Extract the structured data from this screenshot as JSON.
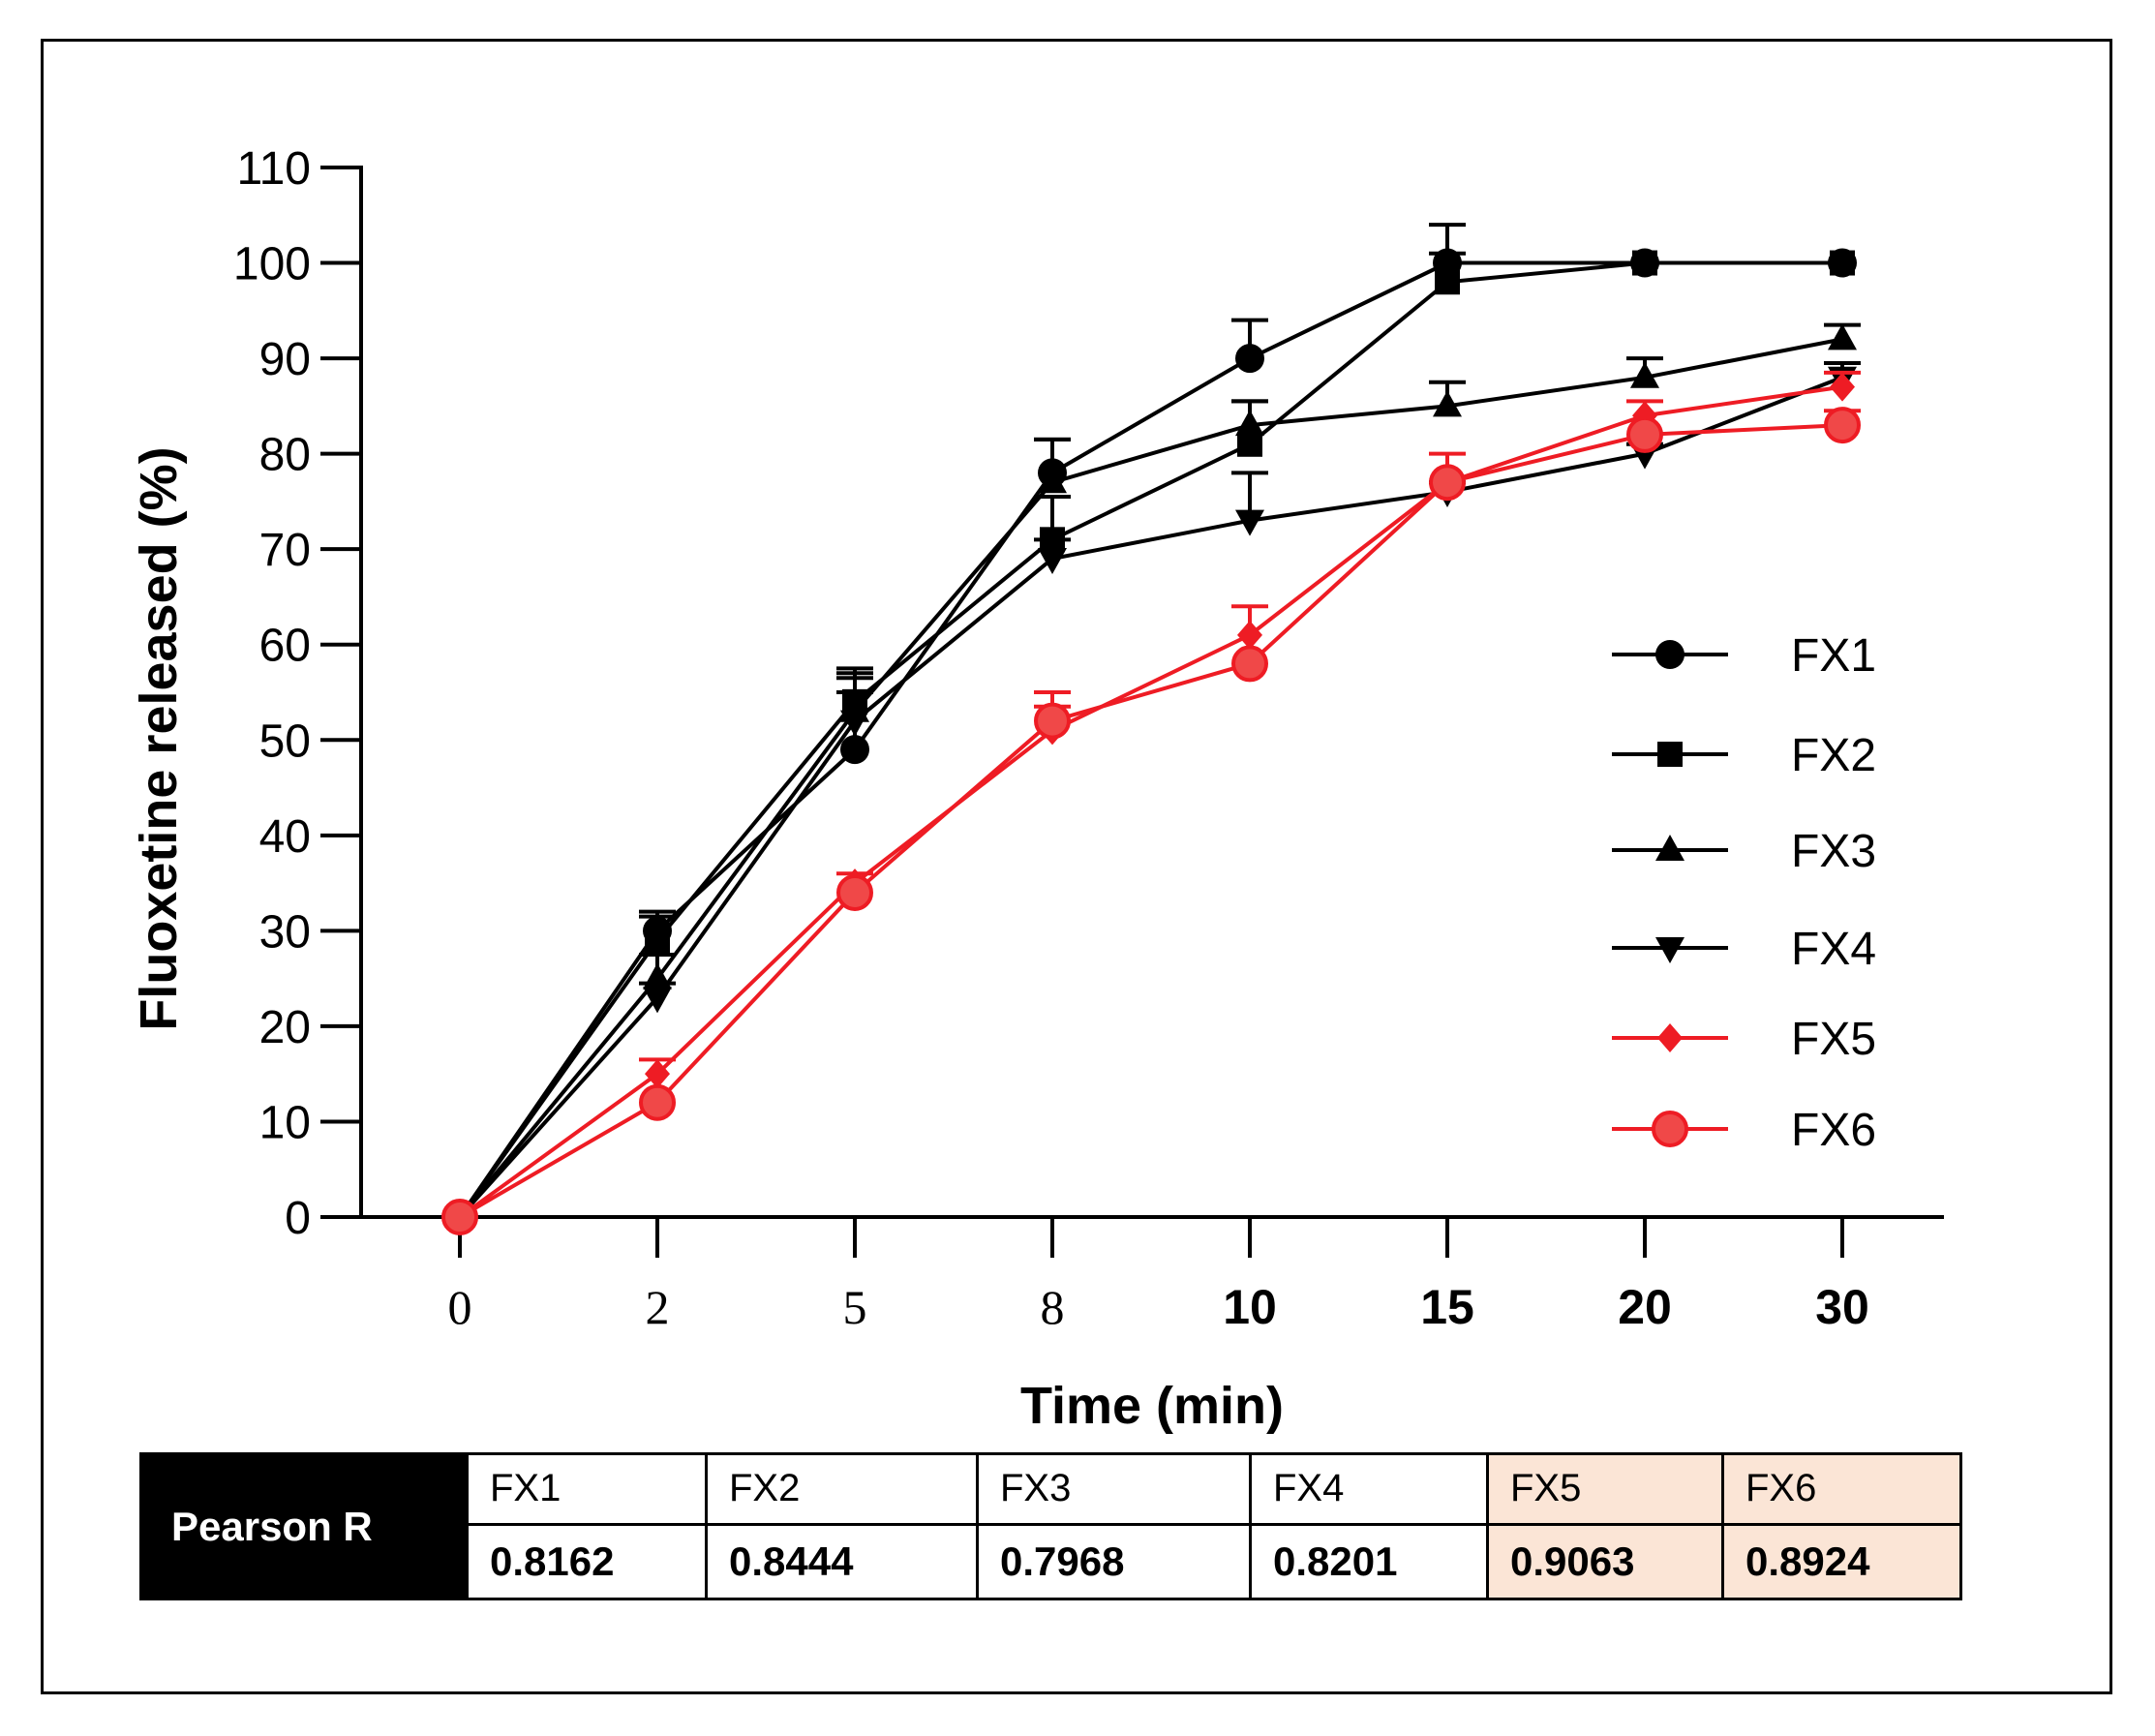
{
  "chart_data": {
    "type": "line",
    "xlabel": "Time (min)",
    "ylabel": "Fluoxetine released (%)",
    "categories": [
      "0",
      "2",
      "5",
      "8",
      "10",
      "15",
      "20",
      "30"
    ],
    "ylim": [
      0,
      110
    ],
    "yticks": [
      0,
      10,
      20,
      30,
      40,
      50,
      60,
      70,
      80,
      90,
      100,
      110
    ],
    "grid": false,
    "legend_position": "right",
    "series": [
      {
        "name": "FX1",
        "marker": "circle",
        "color": "#000000",
        "values": [
          0,
          30,
          49,
          78,
          90,
          100,
          100,
          100
        ],
        "errors": [
          0,
          2,
          8,
          3.5,
          4,
          4,
          0,
          0
        ]
      },
      {
        "name": "FX2",
        "marker": "square",
        "color": "#000000",
        "values": [
          0,
          29,
          54,
          71,
          81,
          98,
          100,
          100
        ],
        "errors": [
          0,
          2.5,
          3.5,
          4.5,
          4.5,
          3,
          0,
          0
        ]
      },
      {
        "name": "FX3",
        "marker": "triangle-up",
        "color": "#000000",
        "values": [
          0,
          25,
          53,
          77,
          83,
          85,
          88,
          92
        ],
        "errors": [
          0,
          2.5,
          3.5,
          4.5,
          2.5,
          2.5,
          2,
          1.5
        ]
      },
      {
        "name": "FX4",
        "marker": "triangle-down",
        "color": "#000000",
        "values": [
          0,
          23,
          52,
          69,
          73,
          76,
          80,
          88
        ],
        "errors": [
          0,
          1.5,
          3,
          2,
          5,
          1,
          1,
          1.5
        ]
      },
      {
        "name": "FX5",
        "marker": "diamond",
        "color": "#ee1c24",
        "values": [
          0,
          15,
          35,
          51,
          61,
          77,
          84,
          87
        ],
        "errors": [
          0,
          1.5,
          1,
          4,
          3,
          3,
          1.5,
          1.5
        ]
      },
      {
        "name": "FX6",
        "marker": "circle-large",
        "color": "#ee1c24",
        "values": [
          0,
          12,
          34,
          52,
          58,
          77,
          82,
          83
        ],
        "errors": [
          0,
          0,
          0,
          1.5,
          0,
          0,
          0,
          1.5
        ]
      }
    ]
  },
  "pearson_table": {
    "header": "Pearson R",
    "columns": [
      "FX1",
      "FX2",
      "FX3",
      "FX4",
      "FX5",
      "FX6"
    ],
    "values": [
      "0.8162",
      "0.8444",
      "0.7968",
      "0.8201",
      "0.9063",
      "0.8924"
    ],
    "highlight_color": "#fbe5d6"
  }
}
